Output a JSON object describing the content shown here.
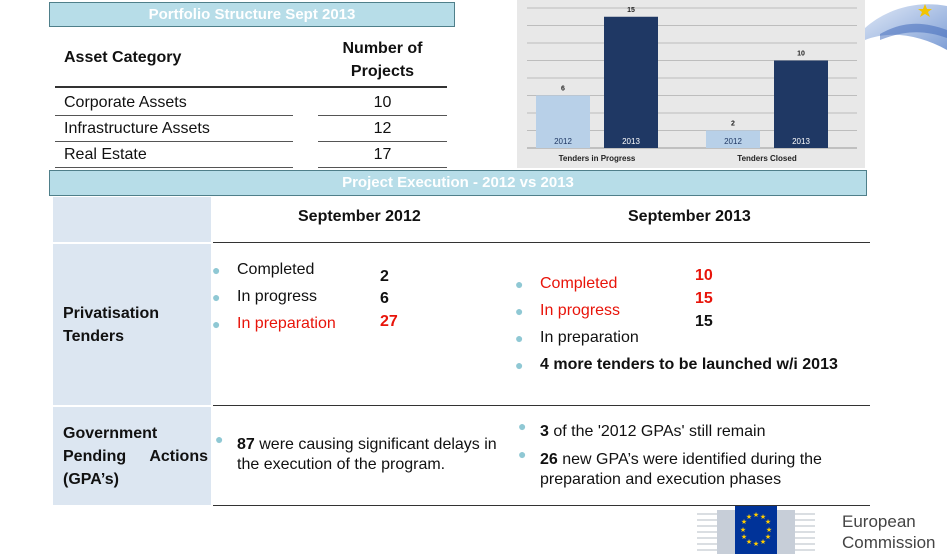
{
  "portfolio": {
    "title": "Portfolio Structure Sept 2013",
    "col_category": "Asset Category",
    "col_count": "Number of Projects",
    "rows": [
      {
        "category": "Corporate Assets",
        "count": "10"
      },
      {
        "category": "Infrastructure Assets",
        "count": "12"
      },
      {
        "category": "Real Estate",
        "count": "17"
      }
    ]
  },
  "chart_data": {
    "type": "bar",
    "categories": [
      "Tenders in Progress",
      "Tenders Closed"
    ],
    "series": [
      {
        "name": "2012",
        "values": [
          6,
          2
        ],
        "color": "#b8d0e8"
      },
      {
        "name": "2013",
        "values": [
          15,
          10
        ],
        "color": "#1f3864"
      }
    ],
    "ylim": [
      0,
      16
    ],
    "grid": true
  },
  "execution": {
    "title": "Project Execution - 2012 vs 2013",
    "col_2012": "September 2012",
    "col_2013": "September 2013",
    "privatisation": {
      "label": "Privatisation Tenders",
      "y2012": [
        {
          "label": "Completed",
          "value": "2",
          "highlight": false
        },
        {
          "label": "In progress",
          "value": "6",
          "highlight": false
        },
        {
          "label": "In preparation",
          "value": "27",
          "highlight": true
        }
      ],
      "y2013": [
        {
          "label": "Completed",
          "value": "10",
          "highlight": true
        },
        {
          "label": "In progress",
          "value": "15",
          "highlight": true
        },
        {
          "label": "In preparation",
          "value": "15",
          "highlight": false
        }
      ],
      "y2013_note": "4 more tenders to be launched w/i 2013"
    },
    "gpa": {
      "label": "Government Pending Actions (GPA’s)",
      "y2012_bold": "87",
      "y2012_text": " were causing significant delays in the execution of the program.",
      "y2013_item1_bold": "3",
      "y2013_item1_text": " of the '2012 GPAs' still remain",
      "y2013_item2_bold": "26",
      "y2013_item2_text": " new GPA’s were identified during the preparation and execution phases"
    }
  },
  "logo": {
    "line1": "European",
    "line2": "Commission"
  },
  "colors": {
    "header_bg": "#b7dde8",
    "row_label_bg": "#dce6f1",
    "highlight": "#e8140a",
    "bullet": "#8fc8d4"
  }
}
